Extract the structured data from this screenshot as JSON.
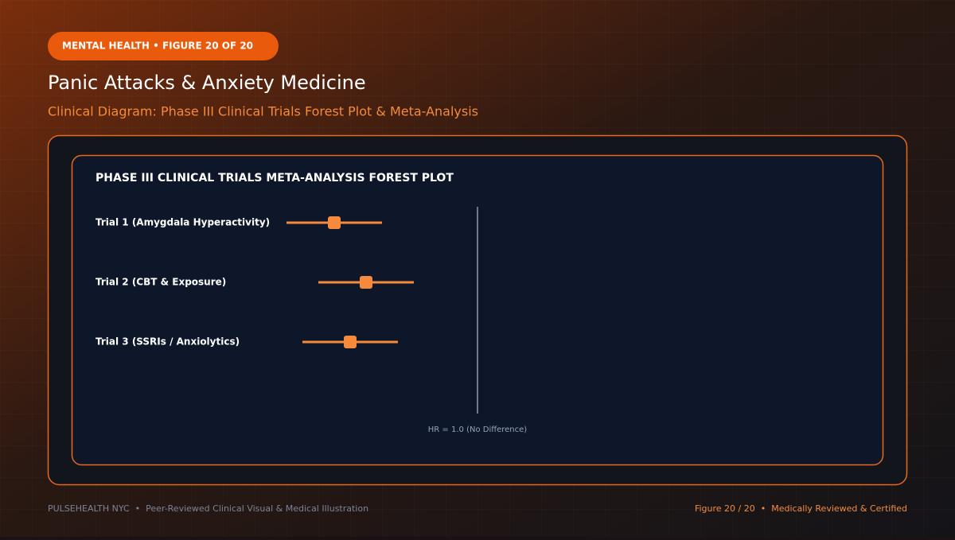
{
  "badge": "MENTAL HEALTH • FIGURE 20 OF 20",
  "header": {
    "title": "Panic Attacks & Anxiety Medicine",
    "subtitle": "Clinical Diagram: Phase III Clinical Trials Forest Plot & Meta-Analysis"
  },
  "plot": {
    "heading": "PHASE III CLINICAL TRIALS META-ANALYSIS FOREST PLOT",
    "trials": [
      "Trial 1 (Amygdala Hyperactivity)",
      "Trial 2 (CBT & Exposure)",
      "Trial 3 (SSRIs / Anxiolytics)"
    ],
    "reference_label": "HR = 1.0 (No Difference)"
  },
  "footer": {
    "left": "PULSEHEALTH NYC  •  Peer-Reviewed Clinical Visual & Medical Illustration",
    "right": "Figure 20 / 20  •  Medically Reviewed & Certified"
  }
}
